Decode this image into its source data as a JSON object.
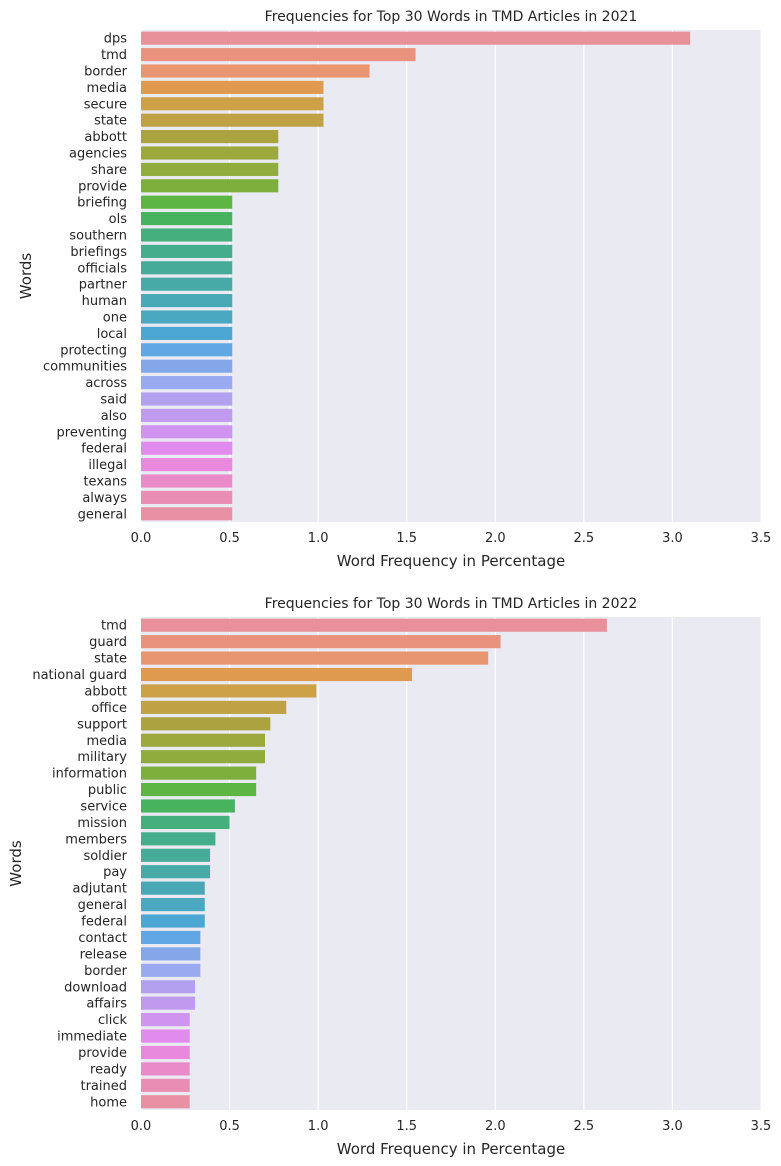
{
  "chart_data": [
    {
      "type": "bar",
      "orientation": "horizontal",
      "title": "Frequencies for Top 30 Words in TMD Articles in 2021",
      "xlabel": "Word Frequency in Percentage",
      "ylabel": "Words",
      "xlim": [
        0,
        3.5
      ],
      "xticks": [
        "0.0",
        "0.5",
        "1.0",
        "1.5",
        "2.0",
        "2.5",
        "3.0",
        "3.5"
      ],
      "grid": true,
      "categories": [
        "dps",
        "tmd",
        "border",
        "media",
        "secure",
        "state",
        "abbott",
        "agencies",
        "share",
        "provide",
        "briefing",
        "ols",
        "southern",
        "briefings",
        "officials",
        "partner",
        "human",
        "one",
        "local",
        "protecting",
        "communities",
        "across",
        "said",
        "also",
        "preventing",
        "federal",
        "illegal",
        "texans",
        "always",
        "general"
      ],
      "values": [
        3.1,
        1.55,
        1.29,
        1.03,
        1.03,
        1.03,
        0.775,
        0.775,
        0.775,
        0.775,
        0.515,
        0.515,
        0.515,
        0.515,
        0.515,
        0.515,
        0.515,
        0.515,
        0.515,
        0.515,
        0.515,
        0.515,
        0.515,
        0.515,
        0.515,
        0.515,
        0.515,
        0.515,
        0.515,
        0.515
      ],
      "colors": [
        "#e8919b",
        "#e9937f",
        "#e8966f",
        "#df9a4f",
        "#cda146",
        "#bea244",
        "#aba33f",
        "#9da83d",
        "#8fac3d",
        "#7eaf3c",
        "#5db642",
        "#47b35f",
        "#45b07b",
        "#46ad8c",
        "#47ab99",
        "#48aaa6",
        "#48a8b4",
        "#4aa8c0",
        "#4ca8d2",
        "#60a7e3",
        "#84a7ea",
        "#9aaaf0",
        "#b2a1ef",
        "#c09aee",
        "#cf94ef",
        "#e08bed",
        "#e889dd",
        "#e98bc8",
        "#ea8db4",
        "#e991a4"
      ]
    },
    {
      "type": "bar",
      "orientation": "horizontal",
      "title": "Frequencies for Top 30 Words in TMD Articles in 2022",
      "xlabel": "Word Frequency in Percentage",
      "ylabel": "Words",
      "xlim": [
        0,
        3.5
      ],
      "xticks": [
        "0.0",
        "0.5",
        "1.0",
        "1.5",
        "2.0",
        "2.5",
        "3.0",
        "3.5"
      ],
      "grid": true,
      "categories": [
        "tmd",
        "guard",
        "state",
        "national guard",
        "abbott",
        "office",
        "support",
        "media",
        "military",
        "information",
        "public",
        "service",
        "mission",
        "members",
        "soldier",
        "pay",
        "adjutant",
        "general",
        "federal",
        "contact",
        "release",
        "border",
        "download",
        "affairs",
        "click",
        "immediate",
        "provide",
        "ready",
        "trained",
        "home"
      ],
      "values": [
        2.63,
        2.03,
        1.96,
        1.53,
        0.99,
        0.82,
        0.73,
        0.7,
        0.7,
        0.65,
        0.65,
        0.53,
        0.5,
        0.42,
        0.39,
        0.39,
        0.36,
        0.36,
        0.36,
        0.335,
        0.335,
        0.335,
        0.305,
        0.305,
        0.275,
        0.275,
        0.275,
        0.275,
        0.275,
        0.275
      ],
      "colors": [
        "#e8919b",
        "#e9937f",
        "#e8966f",
        "#df9a4f",
        "#cda146",
        "#bea244",
        "#aba33f",
        "#9da83d",
        "#8fac3d",
        "#7eaf3c",
        "#5db642",
        "#47b35f",
        "#45b07b",
        "#46ad8c",
        "#47ab99",
        "#48aaa6",
        "#48a8b4",
        "#4aa8c0",
        "#4ca8d2",
        "#60a7e3",
        "#84a7ea",
        "#9aaaf0",
        "#b2a1ef",
        "#c09aee",
        "#cf94ef",
        "#e08bed",
        "#e889dd",
        "#e98bc8",
        "#ea8db4",
        "#e991a4"
      ]
    }
  ],
  "colors": {
    "plot_background": "#eaeaf2",
    "grid": "#ffffff",
    "text": "#262626"
  }
}
